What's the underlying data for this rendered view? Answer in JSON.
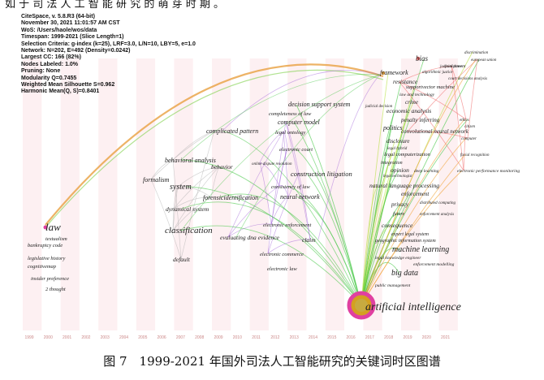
{
  "top_text": "如 于 司 法 人 工 智 能 研 究 的 萌 芽 时 期 。",
  "info_lines": [
    "CiteSpace, v. 5.8.R3 (64-bit)",
    "November 30, 2021 11:01:57 AM CST",
    "WoS: /Users/haole/wos/data",
    "Timespan: 1999-2021 (Slice Length=1)",
    "Selection Criteria: g-index (k=25), LRF=3.0, L/N=10, LBY=5, e=1.0",
    "Network: N=202, E=492 (Density=0.0242)",
    "Largest CC: 166 (82%)",
    "Nodes Labeled: 1.0%",
    "Pruning: None",
    "Modularity Q=0.7455",
    "Weighted Mean Silhouette S=0.962",
    "Harmonic Mean(Q, S)=0.8401"
  ],
  "years": [
    "1999",
    "2000",
    "2001",
    "2002",
    "2003",
    "2004",
    "2005",
    "2006",
    "2007",
    "2008",
    "2009",
    "2010",
    "2011",
    "2012",
    "2013",
    "2014",
    "2015",
    "2016",
    "2017",
    "2018",
    "2019",
    "2020",
    "2021"
  ],
  "keywords": [
    {
      "id": "law",
      "text": "law",
      "size": 13
    },
    {
      "id": "textualism",
      "text": "textualism",
      "size": 6.5
    },
    {
      "id": "bankruptcy-code",
      "text": "bankruptcy code",
      "size": 6.5
    },
    {
      "id": "legislative-history",
      "text": "legislative history",
      "size": 6.5
    },
    {
      "id": "cognitivemap",
      "text": "cognitivemap",
      "size": 6.5
    },
    {
      "id": "insider-preference",
      "text": "insider preference",
      "size": 6.5
    },
    {
      "id": "2-thought",
      "text": "2 thought",
      "size": 6.5
    },
    {
      "id": "formalism",
      "text": "formalism",
      "size": 8
    },
    {
      "id": "system",
      "text": "system",
      "size": 10
    },
    {
      "id": "behavioral-analysis",
      "text": "behavioral analysis",
      "size": 8
    },
    {
      "id": "behavior",
      "text": "behavior",
      "size": 7.5
    },
    {
      "id": "complicated-pattern",
      "text": "complicated pattern",
      "size": 8
    },
    {
      "id": "dynamical-system",
      "text": "dynamical system",
      "size": 7.5
    },
    {
      "id": "classification",
      "text": "classification",
      "size": 11
    },
    {
      "id": "default",
      "text": "default",
      "size": 7.5
    },
    {
      "id": "forensicidentification",
      "text": "forensicidentification",
      "size": 8
    },
    {
      "id": "evaluating-dna-evidence",
      "text": "evaluating dna evidence",
      "size": 7.5
    },
    {
      "id": "electronic-enforcement",
      "text": "electronic enforcement",
      "size": 6.5
    },
    {
      "id": "claim",
      "text": "claim",
      "size": 7.5
    },
    {
      "id": "electronic-commerce",
      "text": "electronic commerce",
      "size": 6.5
    },
    {
      "id": "electronic-law",
      "text": "electronic law",
      "size": 6.5
    },
    {
      "id": "neural-network",
      "text": "neural network",
      "size": 8
    },
    {
      "id": "consistency-of-law",
      "text": "consistency of law",
      "size": 6.5
    },
    {
      "id": "online-dispute-resolution",
      "text": "online dispute resolution",
      "size": 5
    },
    {
      "id": "construction-litigation",
      "text": "construction litigation",
      "size": 8.5
    },
    {
      "id": "electronic-court",
      "text": "electronic court",
      "size": 6.5
    },
    {
      "id": "legal-ontology",
      "text": "legal ontology",
      "size": 6.5
    },
    {
      "id": "computer-model",
      "text": "computer model",
      "size": 8
    },
    {
      "id": "completeness-of-law",
      "text": "completeness of law",
      "size": 6.5
    },
    {
      "id": "decision-support-system",
      "text": "decision support system",
      "size": 8
    },
    {
      "id": "judicial-decision",
      "text": "judicial decision",
      "size": 5
    },
    {
      "id": "framework",
      "text": "framework",
      "size": 8
    },
    {
      "id": "bias",
      "text": "bias",
      "size": 9
    },
    {
      "id": "resistance",
      "text": "resistance",
      "size": 7.5
    },
    {
      "id": "punishment",
      "text": "punishment",
      "size": 5.5
    },
    {
      "id": "algorithmic-justice",
      "text": "algorithmic justice",
      "size": 5
    },
    {
      "id": "judicial-power",
      "text": "judicial power",
      "size": 5
    },
    {
      "id": "court-decisions-analysis",
      "text": "court decisions analysis",
      "size": 5
    },
    {
      "id": "discrimination",
      "text": "discrimination",
      "size": 5
    },
    {
      "id": "european-union",
      "text": "european union",
      "size": 5
    },
    {
      "id": "supportvector-machine",
      "text": "supportvector machine",
      "size": 6.5
    },
    {
      "id": "law-and-technology",
      "text": "law and technology",
      "size": 5.5
    },
    {
      "id": "crime",
      "text": "crime",
      "size": 7
    },
    {
      "id": "economic-analysis",
      "text": "economic analysis",
      "size": 7.5
    },
    {
      "id": "penalty-inferring",
      "text": "penalty inferring",
      "size": 7
    },
    {
      "id": "politics",
      "text": "politics",
      "size": 8
    },
    {
      "id": "convolutional-neural-network",
      "text": "convolutional neural network",
      "size": 7
    },
    {
      "id": "ethics",
      "text": "ethics",
      "size": 5
    },
    {
      "id": "citizen",
      "text": "citizen",
      "size": 5
    },
    {
      "id": "computer",
      "text": "computer",
      "size": 5
    },
    {
      "id": "disclosure",
      "text": "disclosure",
      "size": 7
    },
    {
      "id": "legal-hybrid",
      "text": "legal hybrid",
      "size": 5
    },
    {
      "id": "legal-computerization",
      "text": "legal computerization",
      "size": 6.5
    },
    {
      "id": "facial-recognition",
      "text": "facial recognition",
      "size": 5
    },
    {
      "id": "integration",
      "text": "integration",
      "size": 6
    },
    {
      "id": "opinion",
      "text": "opinion",
      "size": 7.5
    },
    {
      "id": "deep-learning",
      "text": "deep learning",
      "size": 5.5
    },
    {
      "id": "electronic-performance-monitoring",
      "text": "electronic performance monitoring",
      "size": 5.5
    },
    {
      "id": "legal-technologist",
      "text": "legal technologist",
      "size": 5
    },
    {
      "id": "natural-language-processing",
      "text": "natural language processing",
      "size": 7.5
    },
    {
      "id": "enforcement",
      "text": "enforcement",
      "size": 7
    },
    {
      "id": "privacy",
      "text": "privacy",
      "size": 7
    },
    {
      "id": "distributed-computing",
      "text": "distributed computing",
      "size": 5
    },
    {
      "id": "future",
      "text": "future",
      "size": 6
    },
    {
      "id": "enforcement-analysis",
      "text": "enforcement analysis",
      "size": 5
    },
    {
      "id": "consequence",
      "text": "consequence",
      "size": 7.5
    },
    {
      "id": "expert-legal-system",
      "text": "expert legal system",
      "size": 6
    },
    {
      "id": "geographic-information-system",
      "text": "geographic information system",
      "size": 6
    },
    {
      "id": "machine-learning",
      "text": "machine learning",
      "size": 10
    },
    {
      "id": "legal-knowledge-engineer",
      "text": "legal knowledge engineer",
      "size": 5.5
    },
    {
      "id": "enforcement-modelling",
      "text": "enforcement modelling",
      "size": 5.5
    },
    {
      "id": "big-data",
      "text": "big data",
      "size": 10
    },
    {
      "id": "public-management",
      "text": "public management",
      "size": 5.5
    },
    {
      "id": "artificial-intelligence",
      "text": "artificial intelligence",
      "size": 14
    }
  ],
  "caption": "图 7　1999-2021 年国外司法人工智能研究的关键词时区图谱",
  "colors": {
    "purple": "#9b59d6",
    "green": "#3cc43c",
    "lime": "#b6e03a",
    "orange": "#f0a030",
    "red": "#f06a6a",
    "gray": "#aaaaaa",
    "node_ring": "#e040a0",
    "node_core": "#d4a020"
  }
}
